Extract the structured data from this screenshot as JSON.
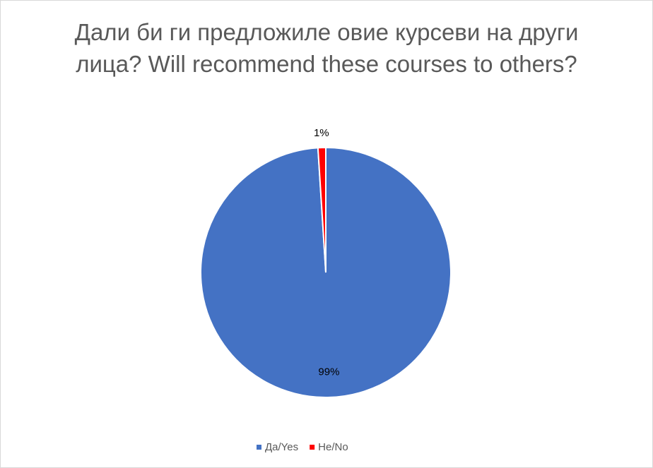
{
  "chart_data": {
    "type": "pie",
    "title": "Дали би ги предложиле овие курсеви на други лица? Will recommend these courses to others?",
    "categories": [
      "Да/Yes",
      "Не/No"
    ],
    "values": [
      99,
      1
    ],
    "value_labels": [
      "99%",
      "1%"
    ],
    "colors": [
      "#4472c4",
      "#ff0000"
    ]
  }
}
